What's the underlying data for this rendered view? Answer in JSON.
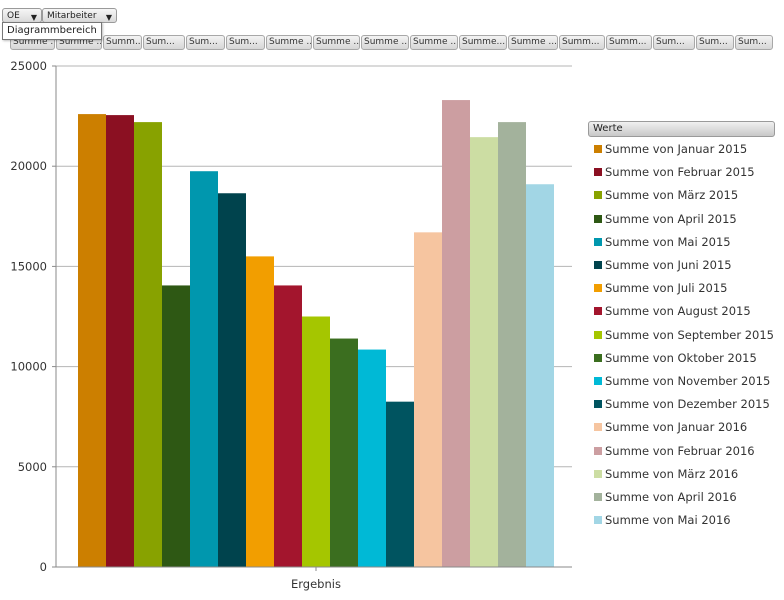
{
  "fields": [
    {
      "label": "OE"
    },
    {
      "label": "Mitarbeiter"
    }
  ],
  "tooltip": "Diagrammbereich",
  "value_tabs": [
    "Summe ...",
    "Summe ...",
    "Summ...",
    "Sum...",
    "Sum...",
    "Sum...",
    "Summe ...",
    "Summe ...",
    "Summe ...",
    "Summe ...",
    "Summe...",
    "Summe ...",
    "Summ...",
    "Summ...",
    "Sum...",
    "Sum...",
    "Sum..."
  ],
  "legend": {
    "title": "Werte"
  },
  "chart_data": {
    "type": "bar",
    "categories": [
      "Ergebnis"
    ],
    "ylim": [
      0,
      25000
    ],
    "yticks": [
      0,
      5000,
      10000,
      15000,
      20000,
      25000
    ],
    "grid": true,
    "legend_position": "right",
    "series": [
      {
        "name": "Summe von Januar 2015",
        "values": [
          22600
        ],
        "color": "#cc7f00"
      },
      {
        "name": "Summe von Februar 2015",
        "values": [
          22550
        ],
        "color": "#8b1022"
      },
      {
        "name": "Summe von März 2015",
        "values": [
          22200
        ],
        "color": "#88a200"
      },
      {
        "name": "Summe von April 2015",
        "values": [
          14050
        ],
        "color": "#2e5814"
      },
      {
        "name": "Summe von Mai 2015",
        "values": [
          19750
        ],
        "color": "#0097ae"
      },
      {
        "name": "Summe von Juni 2015",
        "values": [
          18650
        ],
        "color": "#00434d"
      },
      {
        "name": "Summe von Juli 2015",
        "values": [
          15500
        ],
        "color": "#f29e00"
      },
      {
        "name": "Summe von August 2015",
        "values": [
          14050
        ],
        "color": "#a3152d"
      },
      {
        "name": "Summe von September 2015",
        "values": [
          12500
        ],
        "color": "#a5c600"
      },
      {
        "name": "Summe von Oktober 2015",
        "values": [
          11400
        ],
        "color": "#3b6e1f"
      },
      {
        "name": "Summe von November 2015",
        "values": [
          10850
        ],
        "color": "#00b9d6"
      },
      {
        "name": "Summe von Dezember 2015",
        "values": [
          8250
        ],
        "color": "#005460"
      },
      {
        "name": "Summe von Januar 2016",
        "values": [
          16700
        ],
        "color": "#f6c5a0"
      },
      {
        "name": "Summe von Februar 2016",
        "values": [
          23300
        ],
        "color": "#cc9ea1"
      },
      {
        "name": "Summe von März 2016",
        "values": [
          21450
        ],
        "color": "#ccdda3"
      },
      {
        "name": "Summe von April 2016",
        "values": [
          22200
        ],
        "color": "#a3b29c"
      },
      {
        "name": "Summe von Mai 2016",
        "values": [
          19100
        ],
        "color": "#a2d6e5"
      }
    ]
  }
}
